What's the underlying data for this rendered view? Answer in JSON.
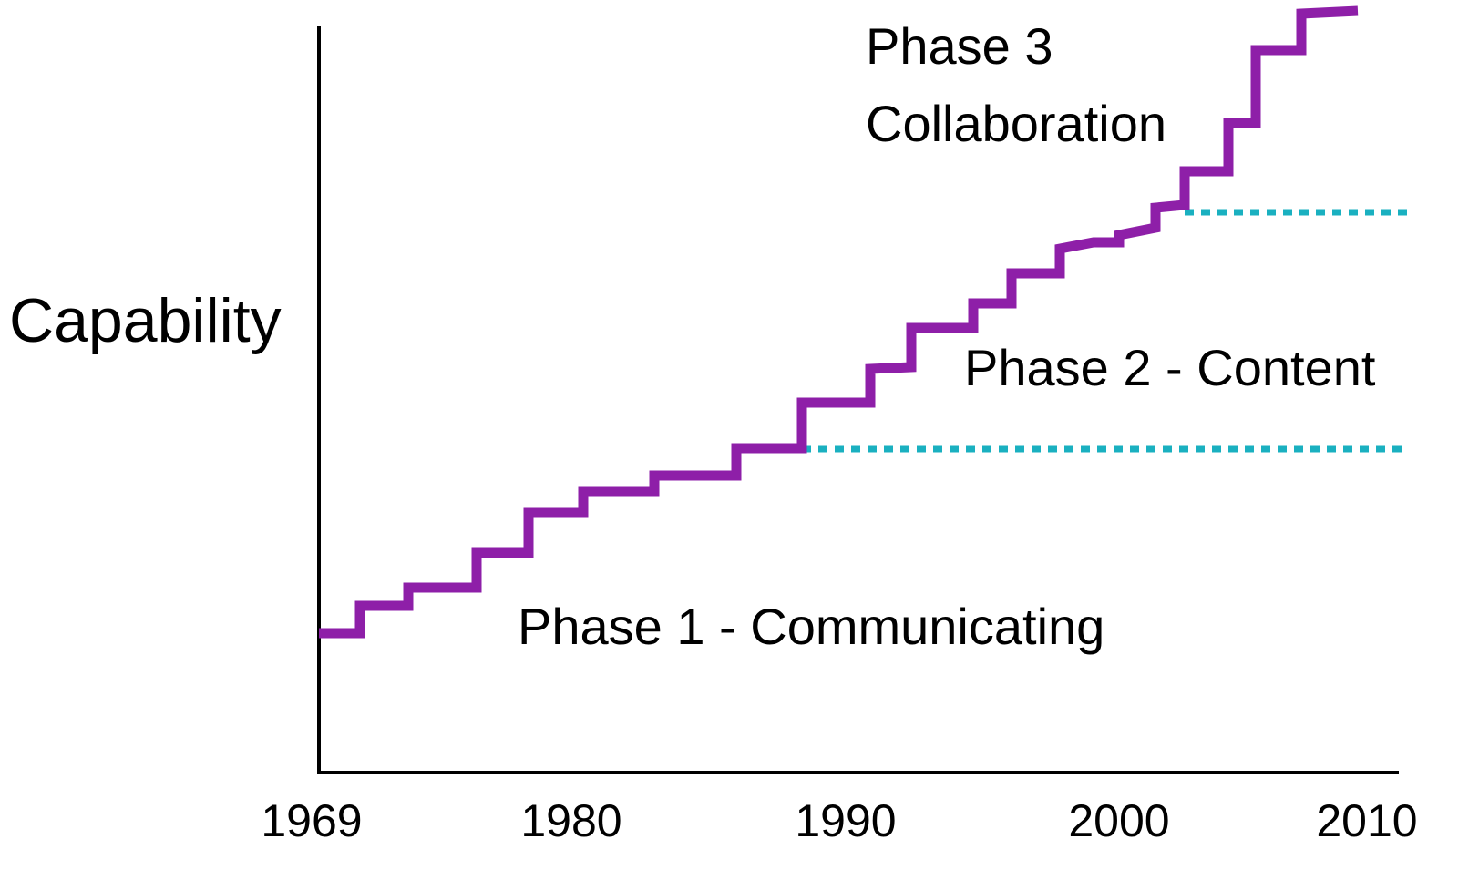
{
  "y_axis_label": "Capability",
  "x_axis_labels": [
    "1969",
    "1980",
    "1990",
    "2000",
    "2010"
  ],
  "phases": [
    "Phase 1 - Communicating",
    "Phase 2 - Content",
    "Phase 3",
    "Collaboration"
  ]
}
